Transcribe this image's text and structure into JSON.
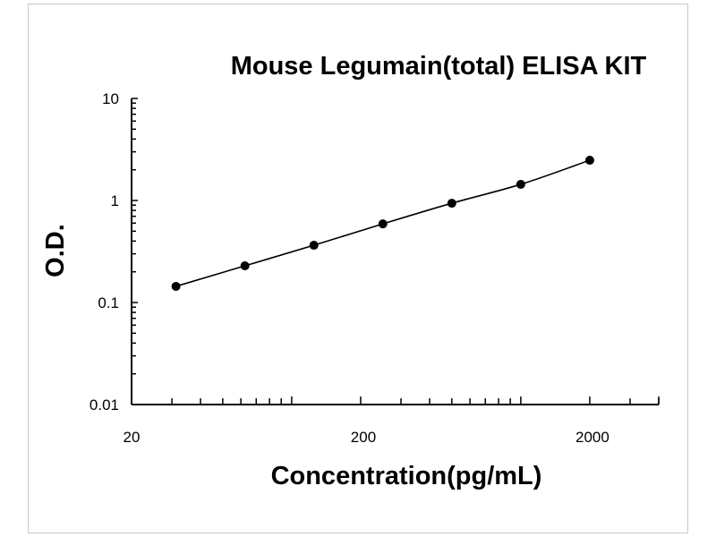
{
  "chart_data": {
    "type": "line",
    "title": "Mouse Legumain(total) ELISA KIT",
    "xlabel": "Concentration(pg/mL)",
    "ylabel": "O.D.",
    "xscale": "log",
    "yscale": "log",
    "xlim": [
      20,
      4000
    ],
    "ylim": [
      0.01,
      10
    ],
    "xticks": [
      {
        "value": 20,
        "label": "20"
      },
      {
        "value": 200,
        "label": "200"
      },
      {
        "value": 2000,
        "label": "2000"
      }
    ],
    "yticks": [
      {
        "value": 10,
        "label": "10"
      },
      {
        "value": 1,
        "label": "1"
      },
      {
        "value": 0.1,
        "label": "0.1"
      },
      {
        "value": 0.01,
        "label": "0.01"
      }
    ],
    "grid": false,
    "series": [
      {
        "x": [
          31.25,
          62.5,
          125,
          250,
          500,
          1000,
          2000
        ],
        "y": [
          0.144,
          0.229,
          0.364,
          0.59,
          0.94,
          1.44,
          2.48
        ],
        "marker": "circle",
        "color": "#000000",
        "smooth": true
      }
    ]
  }
}
